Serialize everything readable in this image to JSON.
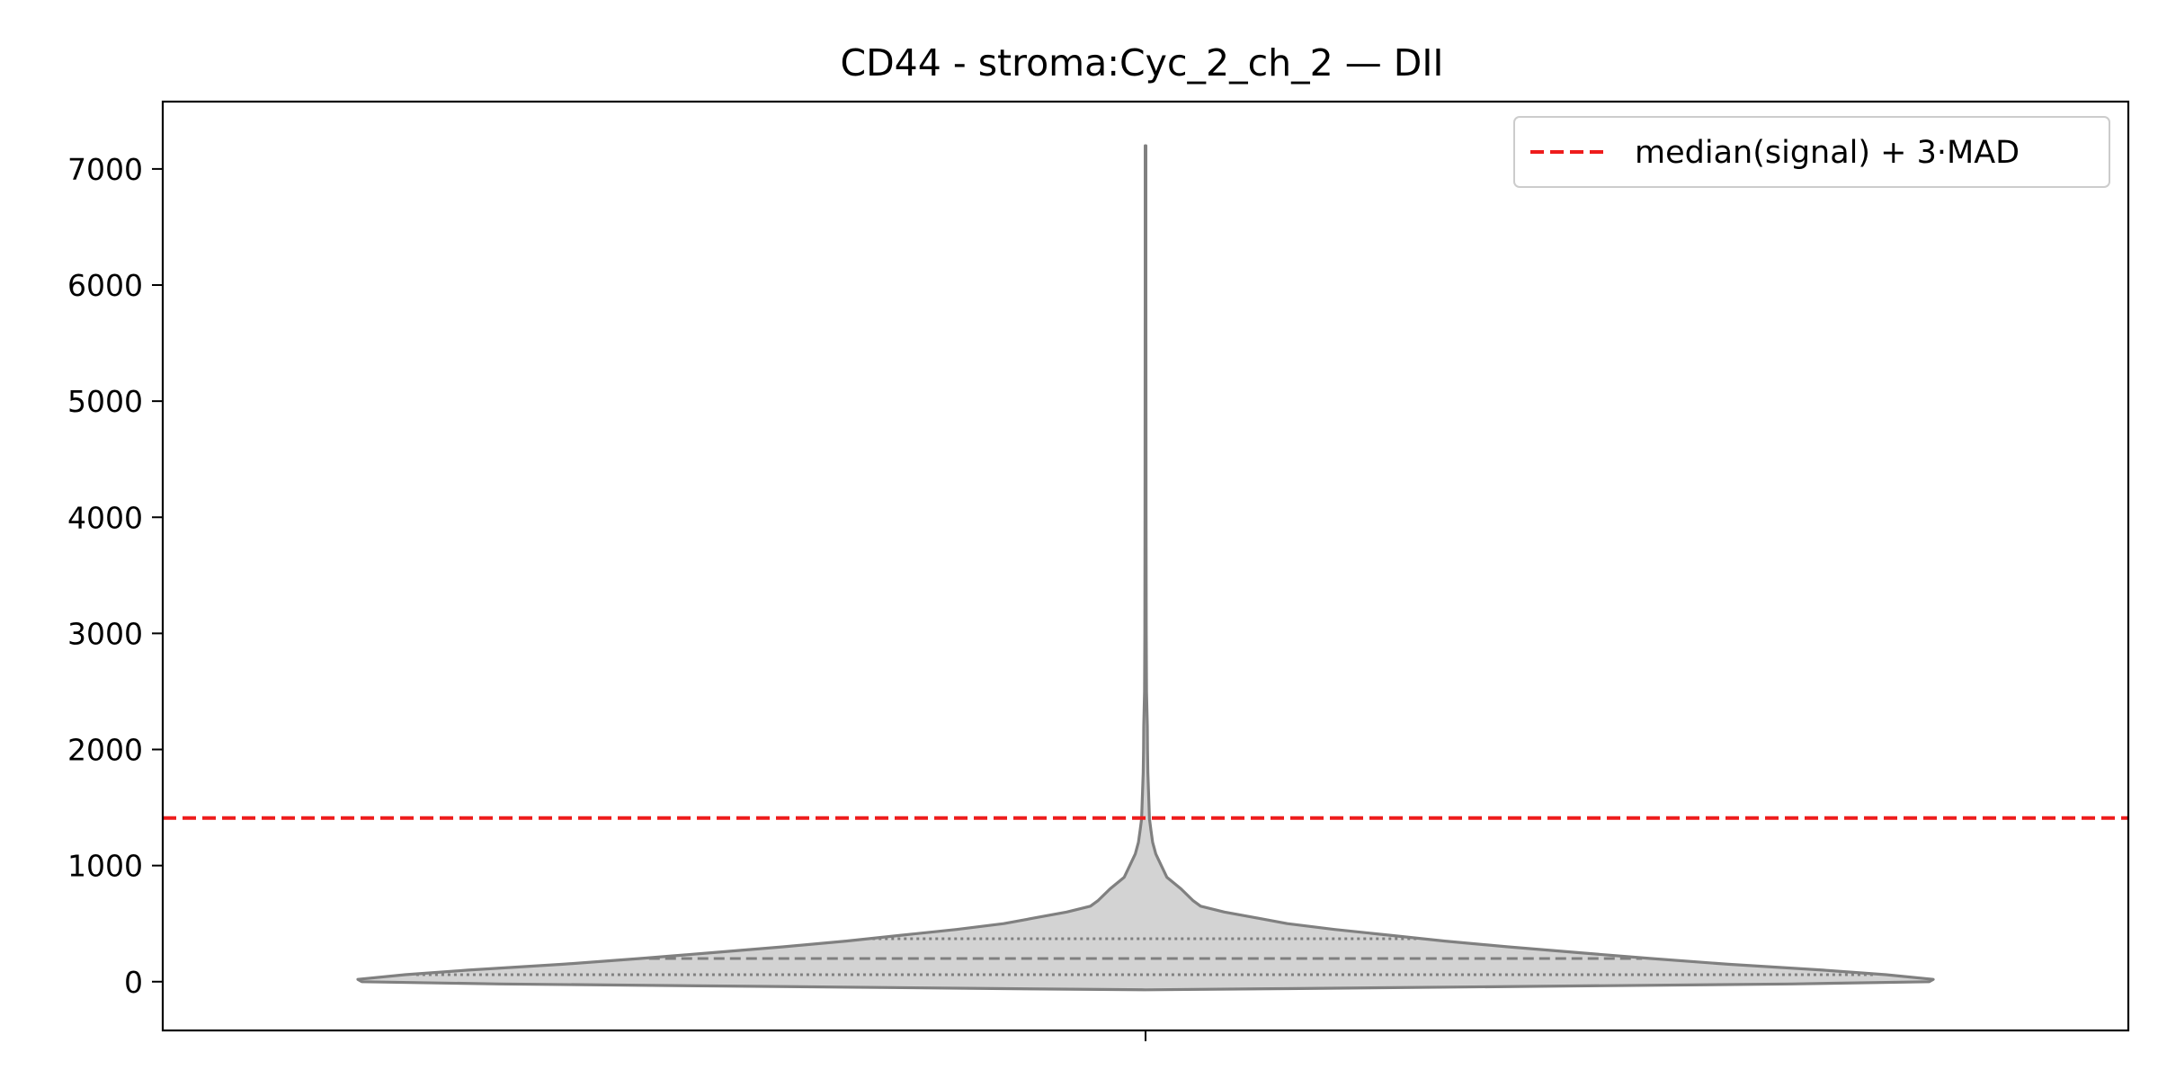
{
  "chart_data": {
    "type": "violin",
    "title": "CD44 - stroma:Cyc_2_ch_2 — DII",
    "xlabel": "",
    "ylabel": "",
    "ylim": [
      -420,
      7580
    ],
    "yticks": [
      0,
      1000,
      2000,
      3000,
      4000,
      5000,
      6000,
      7000
    ],
    "grid": false,
    "legend": {
      "placement": "top-right",
      "entries": [
        {
          "label": "median(signal) + 3·MAD",
          "style": "dashed",
          "color": "#ee1c1c"
        }
      ]
    },
    "threshold": {
      "value": 1410,
      "label": "median(signal) + 3·MAD"
    },
    "violin": {
      "fill": "#d3d3d3",
      "edge": "#808080",
      "quartiles": {
        "q1": 60,
        "median": 200,
        "q3": 370
      },
      "profile": [
        [
          -70,
          0.0
        ],
        [
          -60,
          0.18
        ],
        [
          -40,
          0.5
        ],
        [
          -20,
          0.82
        ],
        [
          0,
          0.995
        ],
        [
          20,
          1.0
        ],
        [
          60,
          0.94
        ],
        [
          100,
          0.86
        ],
        [
          150,
          0.74
        ],
        [
          200,
          0.64
        ],
        [
          250,
          0.55
        ],
        [
          300,
          0.46
        ],
        [
          350,
          0.38
        ],
        [
          400,
          0.31
        ],
        [
          450,
          0.24
        ],
        [
          500,
          0.18
        ],
        [
          550,
          0.14
        ],
        [
          600,
          0.1
        ],
        [
          650,
          0.07
        ],
        [
          700,
          0.06
        ],
        [
          800,
          0.045
        ],
        [
          900,
          0.027
        ],
        [
          1000,
          0.02
        ],
        [
          1100,
          0.013
        ],
        [
          1200,
          0.009
        ],
        [
          1300,
          0.007
        ],
        [
          1400,
          0.005
        ],
        [
          1600,
          0.004
        ],
        [
          1800,
          0.003
        ],
        [
          2000,
          0.0025
        ],
        [
          2200,
          0.0023
        ],
        [
          2500,
          0.0012
        ],
        [
          3000,
          0.0009
        ],
        [
          4000,
          0.0007
        ],
        [
          5000,
          0.0006
        ],
        [
          6000,
          0.0005
        ],
        [
          7200,
          0.0004
        ]
      ]
    }
  },
  "colors": {
    "threshold": "#ee1c1c",
    "violin_fill": "#d3d3d3",
    "violin_edge": "#808080"
  }
}
